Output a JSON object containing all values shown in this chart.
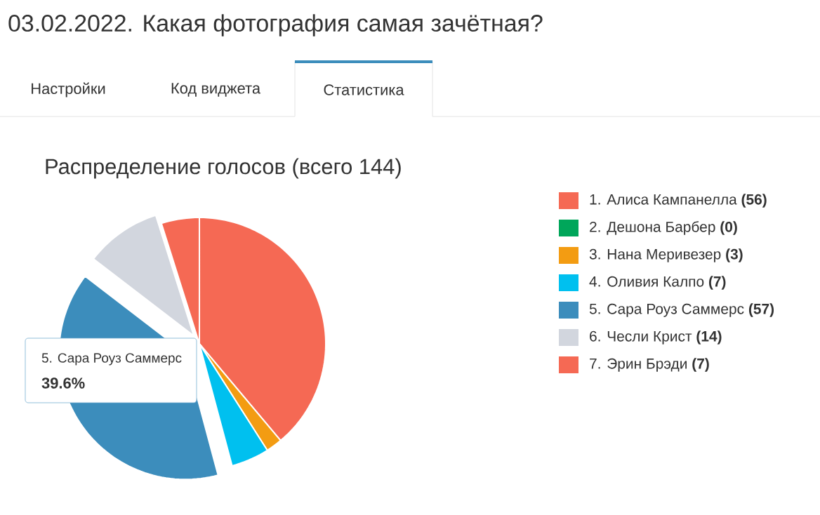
{
  "chart_data": {
    "type": "pie",
    "title": "Распределение голосов (всего 144)",
    "subtitle": "03.02.2022. Какая фотография самая зачётная?",
    "categories": [
      "1. Алиса Кампанелла **(56)**",
      "2. Дешона Барбер **(0)**",
      "3. Нана Меривезер **(3)**",
      "4. Оливия Калпо **(7)**",
      "5. Сара Роуз Саммерс **(57)**",
      "6. Чесли Крист **(14)**",
      "7. Эрин Брэди **(7)**"
    ],
    "values": [
      56,
      0,
      3,
      7,
      57,
      14,
      7
    ],
    "colors": [
      "#f56954",
      "#00a65a",
      "#f39c12",
      "#00c0ef",
      "#3c8dbc",
      "#d2d6de",
      "#f56954"
    ],
    "legend": "right",
    "annotations": [
      "Настройки",
      "Код виджета",
      "Статистика",
      "5. Сара Роуз Саммерс",
      "**39.6%**"
    ]
  }
}
